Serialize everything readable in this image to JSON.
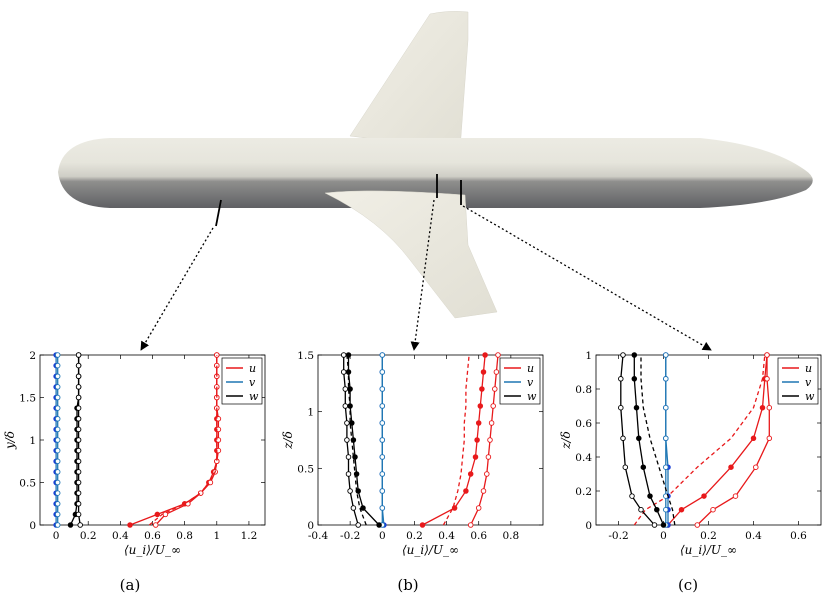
{
  "subfigure_labels": [
    "(a)",
    "(b)",
    "(c)"
  ],
  "colors": {
    "u": "#e8191b",
    "v": "#1f77b4",
    "v_marker": "#1a3fd6",
    "w": "#000000"
  },
  "chart_data": [
    {
      "type": "line",
      "panel": "(a)",
      "xlabel": "⟨u_i⟩/U_∞",
      "ylabel": "y/δ",
      "xlim": [
        -0.1,
        1.3
      ],
      "ylim": [
        0,
        2
      ],
      "xticks": [
        "0",
        "0.2",
        "0.4",
        "0.6",
        "0.8",
        "1",
        "1.2"
      ],
      "yticks": [
        "0",
        "0.5",
        "1",
        "1.5",
        "2"
      ],
      "legend": {
        "entries": [
          "u",
          "v",
          "w"
        ],
        "position": "top-right"
      },
      "series": [
        {
          "name": "u",
          "color": "#e8191b",
          "style": "filled",
          "x": [
            0.46,
            0.63,
            0.8,
            0.9,
            0.95,
            0.98,
            1.0,
            1.0,
            1.0,
            1.0,
            1.0,
            1.0,
            1.0,
            1.0,
            1.0,
            1.0,
            1.0
          ],
          "y": [
            0,
            0.125,
            0.25,
            0.375,
            0.5,
            0.625,
            0.75,
            0.875,
            1.0,
            1.125,
            1.25,
            1.375,
            1.5,
            1.625,
            1.75,
            1.875,
            2.0
          ]
        },
        {
          "name": "u",
          "color": "#e8191b",
          "style": "open",
          "x": [
            0.62,
            0.68,
            0.82,
            0.9,
            0.96,
            0.99,
            1.0,
            1.01,
            1.01,
            1.01,
            1.01,
            1.0,
            1.0,
            1.0,
            1.0,
            1.0,
            1.0
          ],
          "y": [
            0,
            0.125,
            0.25,
            0.375,
            0.5,
            0.625,
            0.75,
            0.875,
            1.0,
            1.125,
            1.25,
            1.375,
            1.5,
            1.625,
            1.75,
            1.875,
            2.0
          ]
        },
        {
          "name": "u",
          "color": "#e8191b",
          "style": "dashed",
          "x": [
            0.58,
            0.66,
            0.8,
            0.9,
            0.95,
            0.99,
            1.0,
            1.0,
            1.0,
            1.0,
            1.0,
            1.0,
            1.0,
            1.0,
            1.0,
            1.0,
            1.0
          ],
          "y": [
            0,
            0.125,
            0.25,
            0.375,
            0.5,
            0.625,
            0.75,
            0.875,
            1.0,
            1.125,
            1.25,
            1.375,
            1.5,
            1.625,
            1.75,
            1.875,
            2.0
          ]
        },
        {
          "name": "v",
          "color": "#1f77b4",
          "style": "filled",
          "x": [
            0.0,
            0.0,
            0.0,
            0.0,
            0.0,
            0.0,
            0.0,
            0.0,
            0.0,
            0.0,
            0.0,
            0.0,
            0.0,
            0.0,
            0.0,
            0.0,
            0.0
          ],
          "y": [
            0,
            0.125,
            0.25,
            0.375,
            0.5,
            0.625,
            0.75,
            0.875,
            1.0,
            1.125,
            1.25,
            1.375,
            1.5,
            1.625,
            1.75,
            1.875,
            2.0
          ]
        },
        {
          "name": "v",
          "color": "#1f77b4",
          "style": "open",
          "x": [
            0.01,
            0.01,
            0.01,
            0.01,
            0.01,
            0.01,
            0.01,
            0.01,
            0.01,
            0.01,
            0.01,
            0.01,
            0.01,
            0.01,
            0.01,
            0.01,
            0.01
          ],
          "y": [
            0,
            0.125,
            0.25,
            0.375,
            0.5,
            0.625,
            0.75,
            0.875,
            1.0,
            1.125,
            1.25,
            1.375,
            1.5,
            1.625,
            1.75,
            1.875,
            2.0
          ]
        },
        {
          "name": "w",
          "color": "#000000",
          "style": "filled",
          "x": [
            0.09,
            0.12,
            0.13,
            0.13,
            0.13,
            0.13,
            0.13,
            0.13,
            0.13,
            0.13,
            0.13,
            0.13,
            0.14,
            0.14,
            0.14,
            0.14,
            0.14
          ],
          "y": [
            0,
            0.125,
            0.25,
            0.375,
            0.5,
            0.625,
            0.75,
            0.875,
            1.0,
            1.125,
            1.25,
            1.375,
            1.5,
            1.625,
            1.75,
            1.875,
            2.0
          ]
        },
        {
          "name": "w",
          "color": "#000000",
          "style": "open",
          "x": [
            0.15,
            0.14,
            0.14,
            0.14,
            0.14,
            0.14,
            0.14,
            0.14,
            0.14,
            0.14,
            0.14,
            0.14,
            0.14,
            0.14,
            0.14,
            0.14,
            0.14
          ],
          "y": [
            0,
            0.125,
            0.25,
            0.375,
            0.5,
            0.625,
            0.75,
            0.875,
            1.0,
            1.125,
            1.25,
            1.375,
            1.5,
            1.625,
            1.75,
            1.875,
            2.0
          ]
        }
      ]
    },
    {
      "type": "line",
      "panel": "(b)",
      "xlabel": "⟨u_i⟩/U_∞",
      "ylabel": "z/δ",
      "xlim": [
        -0.4,
        1.0
      ],
      "ylim": [
        0,
        1.5
      ],
      "xticks": [
        "-0.4",
        "-0.2",
        "0",
        "0.2",
        "0.4",
        "0.6",
        "0.8"
      ],
      "yticks": [
        "0",
        "0.5",
        "1",
        "1.5"
      ],
      "legend": {
        "entries": [
          "u",
          "v",
          "w"
        ],
        "position": "top-right"
      },
      "series": [
        {
          "name": "u",
          "color": "#e8191b",
          "style": "filled",
          "x": [
            0.25,
            0.45,
            0.52,
            0.55,
            0.58,
            0.59,
            0.6,
            0.61,
            0.62,
            0.63,
            0.64
          ],
          "y": [
            0,
            0.15,
            0.3,
            0.45,
            0.6,
            0.75,
            0.9,
            1.05,
            1.2,
            1.35,
            1.5
          ]
        },
        {
          "name": "u",
          "color": "#e8191b",
          "style": "open",
          "x": [
            0.55,
            0.6,
            0.63,
            0.65,
            0.66,
            0.67,
            0.68,
            0.69,
            0.7,
            0.71,
            0.72
          ],
          "y": [
            0,
            0.15,
            0.3,
            0.45,
            0.6,
            0.75,
            0.9,
            1.05,
            1.2,
            1.35,
            1.5
          ]
        },
        {
          "name": "u",
          "color": "#e8191b",
          "style": "dashed",
          "x": [
            0.38,
            0.44,
            0.47,
            0.49,
            0.5,
            0.51,
            0.51,
            0.52,
            0.52,
            0.53,
            0.54
          ],
          "y": [
            0,
            0.15,
            0.3,
            0.45,
            0.6,
            0.75,
            0.9,
            1.05,
            1.2,
            1.35,
            1.5
          ]
        },
        {
          "name": "v",
          "color": "#1f77b4",
          "style": "filled",
          "x": [
            0.01,
            0.0,
            0.0,
            0.0,
            0.0,
            0.0,
            0.0,
            0.0,
            0.0,
            0.0,
            0.0
          ],
          "y": [
            0,
            0.15,
            0.3,
            0.45,
            0.6,
            0.75,
            0.9,
            1.05,
            1.2,
            1.35,
            1.5
          ]
        },
        {
          "name": "v",
          "color": "#1f77b4",
          "style": "open",
          "x": [
            0.0,
            0.0,
            0.0,
            0.0,
            0.0,
            0.0,
            0.0,
            0.0,
            0.0,
            0.0,
            0.0
          ],
          "y": [
            0,
            0.15,
            0.3,
            0.45,
            0.6,
            0.75,
            0.9,
            1.05,
            1.2,
            1.35,
            1.5
          ]
        },
        {
          "name": "w",
          "color": "#000000",
          "style": "filled",
          "x": [
            -0.02,
            -0.12,
            -0.15,
            -0.16,
            -0.17,
            -0.18,
            -0.19,
            -0.2,
            -0.2,
            -0.21,
            -0.21
          ],
          "y": [
            0,
            0.15,
            0.3,
            0.45,
            0.6,
            0.75,
            0.9,
            1.05,
            1.2,
            1.35,
            1.5
          ]
        },
        {
          "name": "w",
          "color": "#000000",
          "style": "open",
          "x": [
            -0.15,
            -0.18,
            -0.2,
            -0.21,
            -0.21,
            -0.22,
            -0.22,
            -0.23,
            -0.23,
            -0.24,
            -0.24
          ],
          "y": [
            0,
            0.15,
            0.3,
            0.45,
            0.6,
            0.75,
            0.9,
            1.05,
            1.2,
            1.35,
            1.5
          ]
        },
        {
          "name": "w",
          "color": "#000000",
          "style": "dashed",
          "x": [
            -0.1,
            -0.14,
            -0.16,
            -0.17,
            -0.18,
            -0.19,
            -0.2,
            -0.2,
            -0.21,
            -0.21,
            -0.22
          ],
          "y": [
            0,
            0.15,
            0.3,
            0.45,
            0.6,
            0.75,
            0.9,
            1.05,
            1.2,
            1.35,
            1.5
          ]
        }
      ]
    },
    {
      "type": "line",
      "panel": "(c)",
      "xlabel": "⟨u_i⟩/U_∞",
      "ylabel": "z/δ",
      "xlim": [
        -0.3,
        0.7
      ],
      "ylim": [
        0,
        1
      ],
      "xticks": [
        "-0.2",
        "0",
        "0.2",
        "0.4",
        "0.6"
      ],
      "yticks": [
        "0",
        "0.2",
        "0.4",
        "0.6",
        "0.8",
        "1"
      ],
      "legend": {
        "entries": [
          "u",
          "v",
          "w"
        ],
        "position": "top-right"
      },
      "series": [
        {
          "name": "u",
          "color": "#e8191b",
          "style": "filled",
          "x": [
            0.02,
            0.08,
            0.18,
            0.3,
            0.4,
            0.44,
            0.45,
            0.46
          ],
          "y": [
            0,
            0.09,
            0.17,
            0.34,
            0.51,
            0.69,
            0.86,
            1.0
          ]
        },
        {
          "name": "u",
          "color": "#e8191b",
          "style": "open",
          "x": [
            0.15,
            0.22,
            0.32,
            0.41,
            0.47,
            0.47,
            0.46,
            0.46
          ],
          "y": [
            0,
            0.09,
            0.17,
            0.34,
            0.51,
            0.69,
            0.86,
            1.0
          ]
        },
        {
          "name": "u",
          "color": "#e8191b",
          "style": "dashed",
          "x": [
            -0.13,
            -0.08,
            0.02,
            0.15,
            0.3,
            0.4,
            0.44,
            0.45
          ],
          "y": [
            0,
            0.09,
            0.17,
            0.34,
            0.51,
            0.69,
            0.86,
            1.0
          ]
        },
        {
          "name": "v",
          "color": "#1f77b4",
          "style": "filled",
          "x": [
            0.02,
            0.02,
            0.02,
            0.02,
            0.01,
            0.01,
            0.01,
            0.01
          ],
          "y": [
            0,
            0.09,
            0.17,
            0.34,
            0.51,
            0.69,
            0.86,
            1.0
          ]
        },
        {
          "name": "v",
          "color": "#1f77b4",
          "style": "open",
          "x": [
            0.01,
            0.01,
            0.01,
            0.01,
            0.01,
            0.01,
            0.01,
            0.01
          ],
          "y": [
            0,
            0.09,
            0.17,
            0.34,
            0.51,
            0.69,
            0.86,
            1.0
          ]
        },
        {
          "name": "w",
          "color": "#000000",
          "style": "filled",
          "x": [
            0.0,
            -0.03,
            -0.06,
            -0.09,
            -0.11,
            -0.12,
            -0.13,
            -0.13
          ],
          "y": [
            0,
            0.09,
            0.17,
            0.34,
            0.51,
            0.69,
            0.86,
            1.0
          ]
        },
        {
          "name": "w",
          "color": "#000000",
          "style": "open",
          "x": [
            -0.04,
            -0.1,
            -0.14,
            -0.17,
            -0.18,
            -0.19,
            -0.19,
            -0.18
          ],
          "y": [
            0,
            0.09,
            0.17,
            0.34,
            0.51,
            0.69,
            0.86,
            1.0
          ]
        },
        {
          "name": "w",
          "color": "#000000",
          "style": "dashed",
          "x": [
            0.05,
            0.04,
            0.02,
            -0.02,
            -0.06,
            -0.09,
            -0.1,
            -0.1
          ],
          "y": [
            0,
            0.09,
            0.17,
            0.34,
            0.51,
            0.69,
            0.86,
            1.0
          ]
        }
      ]
    }
  ]
}
